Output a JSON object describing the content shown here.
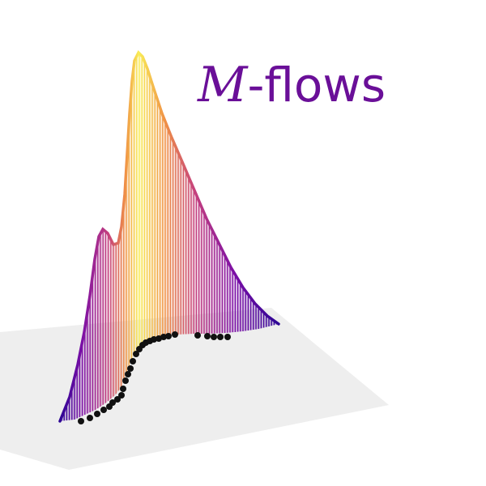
{
  "logo": {
    "title_script": "M",
    "title_rest": "-flows",
    "title_color": "#6a0f98",
    "plane_color": "#ececec",
    "point_color": "#111111",
    "curve_colormap": [
      "#2c0594",
      "#7a0ea6",
      "#c43f7e",
      "#f09145",
      "#f9ee57"
    ]
  }
}
